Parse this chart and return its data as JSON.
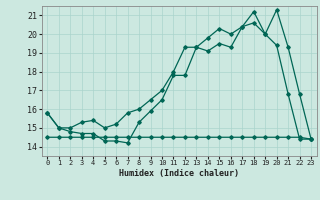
{
  "title": "",
  "xlabel": "Humidex (Indice chaleur)",
  "background_color": "#cce8e0",
  "grid_color": "#aad4cc",
  "line_color": "#006655",
  "xlim": [
    -0.5,
    23.5
  ],
  "ylim": [
    13.5,
    21.5
  ],
  "yticks": [
    14,
    15,
    16,
    17,
    18,
    19,
    20,
    21
  ],
  "xticks": [
    0,
    1,
    2,
    3,
    4,
    5,
    6,
    7,
    8,
    9,
    10,
    11,
    12,
    13,
    14,
    15,
    16,
    17,
    18,
    19,
    20,
    21,
    22,
    23
  ],
  "series1_x": [
    0,
    1,
    2,
    3,
    4,
    5,
    6,
    7,
    8,
    9,
    10,
    11,
    12,
    13,
    14,
    15,
    16,
    17,
    18,
    19,
    20,
    21,
    22,
    23
  ],
  "series1_y": [
    15.8,
    15.0,
    14.8,
    14.7,
    14.7,
    14.3,
    14.3,
    14.2,
    15.3,
    15.9,
    16.5,
    17.8,
    17.8,
    19.3,
    19.1,
    19.5,
    19.3,
    20.4,
    20.6,
    20.0,
    21.3,
    19.3,
    16.8,
    14.4
  ],
  "series2_x": [
    0,
    1,
    2,
    3,
    4,
    5,
    6,
    7,
    8,
    9,
    10,
    11,
    12,
    13,
    14,
    15,
    16,
    17,
    18,
    19,
    20,
    21,
    22,
    23
  ],
  "series2_y": [
    15.8,
    15.0,
    15.0,
    15.3,
    15.4,
    15.0,
    15.2,
    15.8,
    16.0,
    16.5,
    17.0,
    18.0,
    19.3,
    19.3,
    19.8,
    20.3,
    20.0,
    20.4,
    21.2,
    20.0,
    19.4,
    16.8,
    14.4,
    14.4
  ],
  "series3_x": [
    0,
    1,
    2,
    3,
    4,
    5,
    6,
    7,
    8,
    9,
    10,
    11,
    12,
    13,
    14,
    15,
    16,
    17,
    18,
    19,
    20,
    21,
    22,
    23
  ],
  "series3_y": [
    14.5,
    14.5,
    14.5,
    14.5,
    14.5,
    14.5,
    14.5,
    14.5,
    14.5,
    14.5,
    14.5,
    14.5,
    14.5,
    14.5,
    14.5,
    14.5,
    14.5,
    14.5,
    14.5,
    14.5,
    14.5,
    14.5,
    14.5,
    14.4
  ]
}
